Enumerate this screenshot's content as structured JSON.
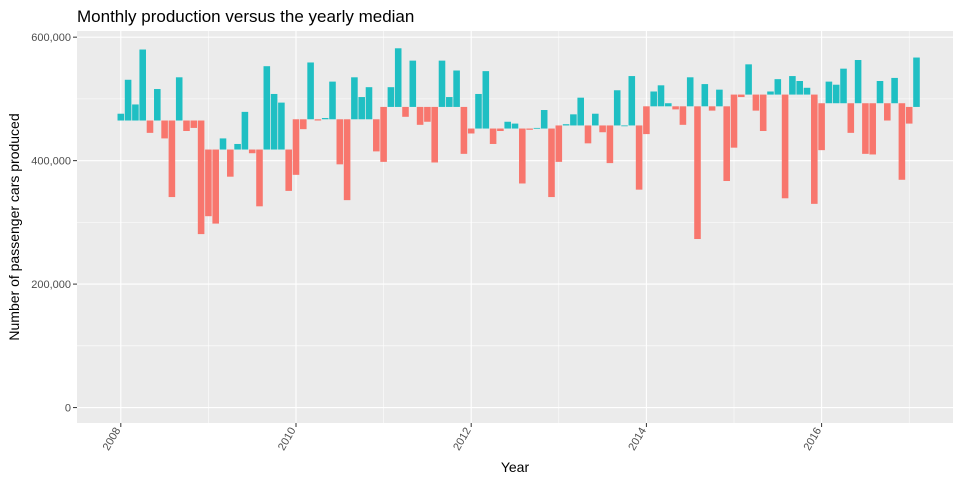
{
  "chart_data": {
    "type": "bar",
    "title": "Monthly production versus the yearly median",
    "xlabel": "Year",
    "ylabel": "Number of passenger cars produced",
    "x_ticks": [
      2008,
      2010,
      2012,
      2014,
      2016
    ],
    "x_tick_labels": [
      "2008",
      "2010",
      "2012",
      "2014",
      "2016"
    ],
    "y_ticks": [
      0,
      200000,
      400000,
      600000
    ],
    "y_tick_labels": [
      "0",
      "200,000",
      "400,000",
      "600,000"
    ],
    "xlim": [
      2007.5,
      2017.5
    ],
    "ylim": [
      -25000,
      610000
    ],
    "grid": true,
    "legend": "none",
    "colors": {
      "above": "#1fbfc3",
      "below": "#f8766d",
      "panel": "#ebebeb",
      "grid": "#ffffff"
    },
    "medians": [
      {
        "year": 2008,
        "value": 465000
      },
      {
        "year": 2009,
        "value": 418000
      },
      {
        "year": 2010,
        "value": 467000
      },
      {
        "year": 2011,
        "value": 487000
      },
      {
        "year": 2012,
        "value": 452000
      },
      {
        "year": 2013,
        "value": 457000
      },
      {
        "year": 2014,
        "value": 488000
      },
      {
        "year": 2015,
        "value": 507000
      },
      {
        "year": 2016,
        "value": 493000
      },
      {
        "year": 2017,
        "value": 487000
      }
    ],
    "series": [
      {
        "year": 2008,
        "values": [
          476000,
          531000,
          491000,
          580000,
          445000,
          516000,
          436000,
          341000,
          535000,
          448000,
          453000,
          281000
        ]
      },
      {
        "year": 2009,
        "values": [
          310000,
          298000,
          436000,
          374000,
          427000,
          479000,
          412000,
          326000,
          553000,
          508000,
          494000,
          351000
        ]
      },
      {
        "year": 2010,
        "values": [
          377000,
          451000,
          559000,
          465000,
          469000,
          528000,
          394000,
          336000,
          535000,
          503000,
          519000,
          415000
        ]
      },
      {
        "year": 2011,
        "values": [
          398000,
          519000,
          582000,
          471000,
          562000,
          458000,
          463000,
          397000,
          562000,
          503000,
          546000,
          411000
        ]
      },
      {
        "year": 2012,
        "values": [
          444000,
          508000,
          545000,
          427000,
          448000,
          463000,
          460000,
          363000,
          450000,
          453000,
          482000,
          341000
        ]
      },
      {
        "year": 2013,
        "values": [
          398000,
          459000,
          475000,
          502000,
          428000,
          476000,
          446000,
          396000,
          514000,
          457000,
          537000,
          353000
        ]
      },
      {
        "year": 2014,
        "values": [
          443000,
          512000,
          522000,
          493000,
          483000,
          458000,
          535000,
          273000,
          524000,
          481000,
          515000,
          367000
        ]
      },
      {
        "year": 2015,
        "values": [
          421000,
          503000,
          556000,
          481000,
          448000,
          512000,
          532000,
          339000,
          537000,
          529000,
          518000,
          330000
        ]
      },
      {
        "year": 2016,
        "values": [
          417000,
          528000,
          523000,
          549000,
          445000,
          563000,
          411000,
          410000,
          529000,
          465000,
          534000,
          369000
        ]
      },
      {
        "year": 2017,
        "values": [
          460000,
          567000
        ]
      }
    ]
  }
}
